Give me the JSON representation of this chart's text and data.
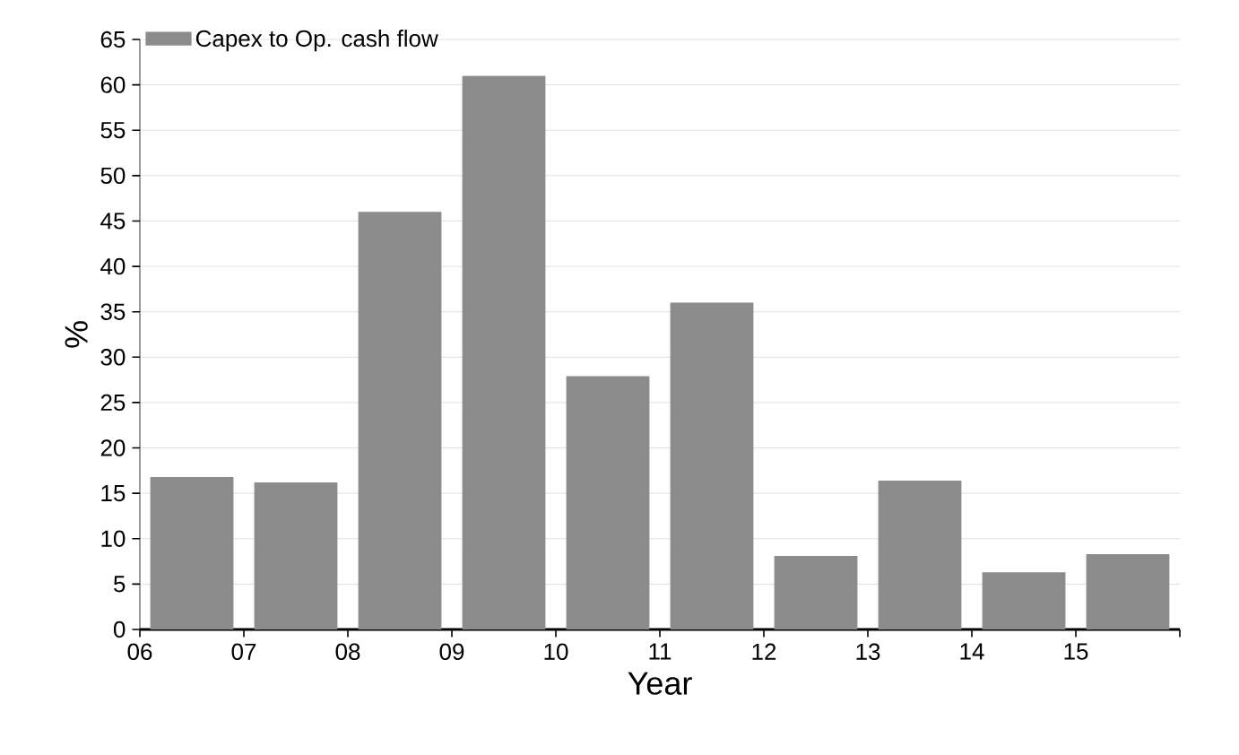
{
  "chart_data": {
    "type": "bar",
    "xlabel": "Year",
    "ylabel": "%",
    "x": [
      6.5,
      7.5,
      8.5,
      9.5,
      10.5,
      11.5,
      12.5,
      13.5,
      14.5,
      15.5
    ],
    "series": [
      {
        "name": "Capex to Op. cash flow",
        "color": "#8c8c8c",
        "values": [
          16.8,
          16.2,
          46,
          61,
          27.9,
          36,
          8.1,
          16.4,
          6.3,
          8.3
        ]
      }
    ],
    "xlim": [
      6,
      16
    ],
    "xticks": [
      {
        "value": 6,
        "label": "06"
      },
      {
        "value": 7,
        "label": "07"
      },
      {
        "value": 8,
        "label": "08"
      },
      {
        "value": 9,
        "label": "09"
      },
      {
        "value": 10,
        "label": "10"
      },
      {
        "value": 11,
        "label": "11"
      },
      {
        "value": 12,
        "label": "12"
      },
      {
        "value": 13,
        "label": "13"
      },
      {
        "value": 14,
        "label": "14"
      },
      {
        "value": 15,
        "label": "15"
      },
      {
        "value": 16,
        "label": null
      }
    ],
    "ylim": [
      0,
      65
    ],
    "yticks": [
      0,
      5,
      10,
      15,
      20,
      25,
      30,
      35,
      40,
      45,
      50,
      55,
      60,
      65
    ],
    "grid": "y",
    "legend": "top left"
  }
}
